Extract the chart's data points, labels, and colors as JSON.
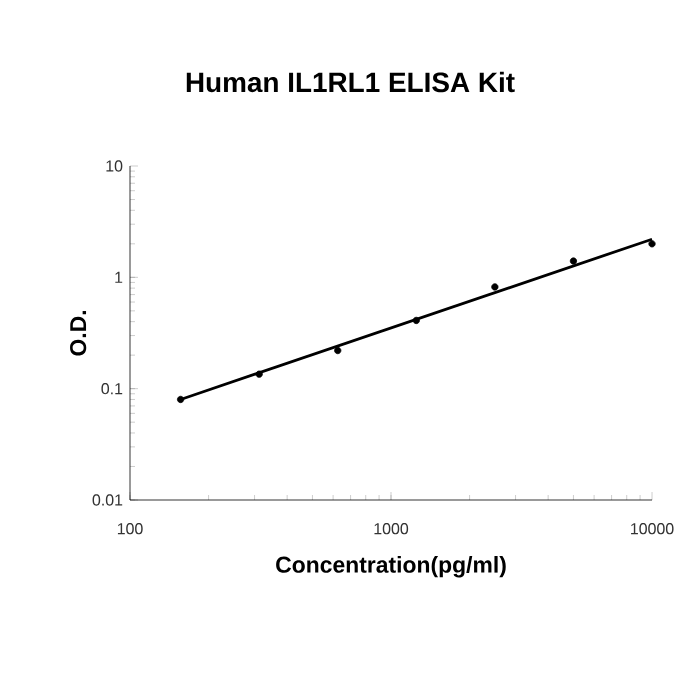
{
  "chart_data": {
    "type": "scatter",
    "title": "Human IL1RL1 ELISA Kit",
    "xlabel": "Concentration(pg/ml)",
    "ylabel": "O.D.",
    "log": "xy",
    "xlim": [
      100,
      10000
    ],
    "ylim": [
      0.01,
      10
    ],
    "xticks": [
      100,
      1000,
      10000
    ],
    "yticks": [
      0.01,
      0.1,
      1,
      10
    ],
    "series": [
      {
        "color": "#000000",
        "marker": "circle",
        "x": [
          156.25,
          312.5,
          625,
          1250,
          2500,
          5000,
          10000
        ],
        "values": [
          0.08,
          0.135,
          0.22,
          0.41,
          0.82,
          1.4,
          2.0
        ]
      },
      {
        "type": "line",
        "color": "#000000",
        "marker": "none",
        "line_style": "solid",
        "x": [
          156.25,
          10000
        ],
        "values": [
          0.08,
          2.2
        ]
      }
    ]
  }
}
